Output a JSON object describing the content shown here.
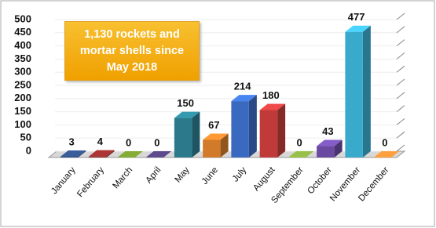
{
  "chart_data": {
    "type": "bar",
    "annotation": "1,130 rockets and mortar shells since May 2018",
    "categories": [
      "January",
      "February",
      "March",
      "April",
      "May",
      "June",
      "July",
      "August",
      "September",
      "October",
      "November",
      "December"
    ],
    "values": [
      3,
      4,
      0,
      0,
      150,
      67,
      214,
      180,
      0,
      43,
      477,
      0
    ],
    "colors": [
      "#2e4a7d",
      "#8b2a2a",
      "#6a8a2a",
      "#4a3a70",
      "#2a7a8c",
      "#d07a2a",
      "#3a6ac0",
      "#c03a3a",
      "#7a9a3a",
      "#6a4aa0",
      "#3aaacc",
      "#e08030"
    ],
    "ylim": [
      0,
      500
    ],
    "yticks": [
      0,
      50,
      100,
      150,
      200,
      250,
      300,
      350,
      400,
      450,
      500
    ],
    "grid": true
  }
}
